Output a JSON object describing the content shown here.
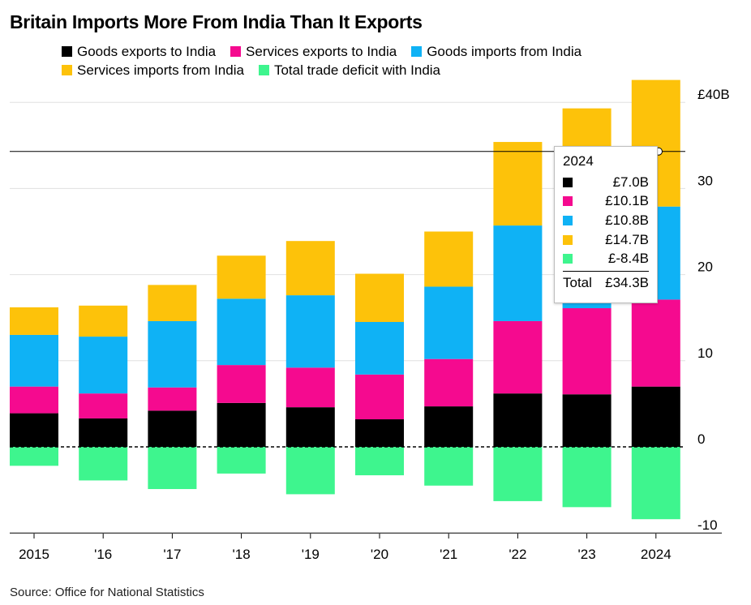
{
  "title": "Britain Imports More From India Than It Exports",
  "source": "Source: Office for National Statistics",
  "legend": {
    "row1": [
      {
        "label": "Goods exports to India",
        "color": "#000000"
      },
      {
        "label": "Services exports to India",
        "color": "#f50a8f"
      },
      {
        "label": "Goods imports from India",
        "color": "#0fb2f5"
      }
    ],
    "row2": [
      {
        "label": "Services imports from India",
        "color": "#fdc20a"
      },
      {
        "label": "Total trade deficit with India",
        "color": "#3ef58e"
      }
    ]
  },
  "tooltip": {
    "year": "2024",
    "rows": [
      {
        "value": "£7.0B",
        "color": "#000000"
      },
      {
        "value": "£10.1B",
        "color": "#f50a8f"
      },
      {
        "value": "£10.8B",
        "color": "#0fb2f5"
      },
      {
        "value": "£14.7B",
        "color": "#fdc20a"
      },
      {
        "value": "£-8.4B",
        "color": "#3ef58e"
      }
    ],
    "total_label": "Total",
    "total_value": "£34.3B"
  },
  "chart_data": {
    "type": "bar",
    "stacked": true,
    "title": "Britain Imports More From India Than It Exports",
    "categories": [
      "2015",
      "'16",
      "'17",
      "'18",
      "'19",
      "'20",
      "'21",
      "'22",
      "'23",
      "2024"
    ],
    "series": [
      {
        "name": "Goods exports to India",
        "color": "#000000",
        "values": [
          3.9,
          3.3,
          4.2,
          5.1,
          4.6,
          3.2,
          4.7,
          6.2,
          6.1,
          7.0
        ]
      },
      {
        "name": "Services exports to India",
        "color": "#f50a8f",
        "values": [
          3.1,
          2.9,
          2.7,
          4.4,
          4.6,
          5.2,
          5.5,
          8.4,
          10.0,
          10.1
        ]
      },
      {
        "name": "Goods imports from India",
        "color": "#0fb2f5",
        "values": [
          6.0,
          6.6,
          7.7,
          7.7,
          8.4,
          6.1,
          8.4,
          11.1,
          8.3,
          10.8
        ]
      },
      {
        "name": "Services imports from India",
        "color": "#fdc20a",
        "values": [
          3.2,
          3.6,
          4.2,
          5.0,
          6.3,
          5.6,
          6.4,
          9.7,
          14.9,
          14.7
        ]
      },
      {
        "name": "Total trade deficit with India",
        "color": "#3ef58e",
        "values": [
          -2.2,
          -3.9,
          -4.9,
          -3.1,
          -5.5,
          -3.3,
          -4.5,
          -6.3,
          -7.0,
          -8.4
        ]
      }
    ],
    "y_ticks": [
      {
        "value": 40,
        "label": "£40B"
      },
      {
        "value": 30,
        "label": "30"
      },
      {
        "value": 20,
        "label": "20"
      },
      {
        "value": 10,
        "label": "10"
      },
      {
        "value": 0,
        "label": "0"
      },
      {
        "value": -10,
        "label": "-10"
      }
    ],
    "ylim": [
      -10,
      42
    ],
    "reference_line": 34.3,
    "grid": true,
    "legend_position": "top"
  }
}
